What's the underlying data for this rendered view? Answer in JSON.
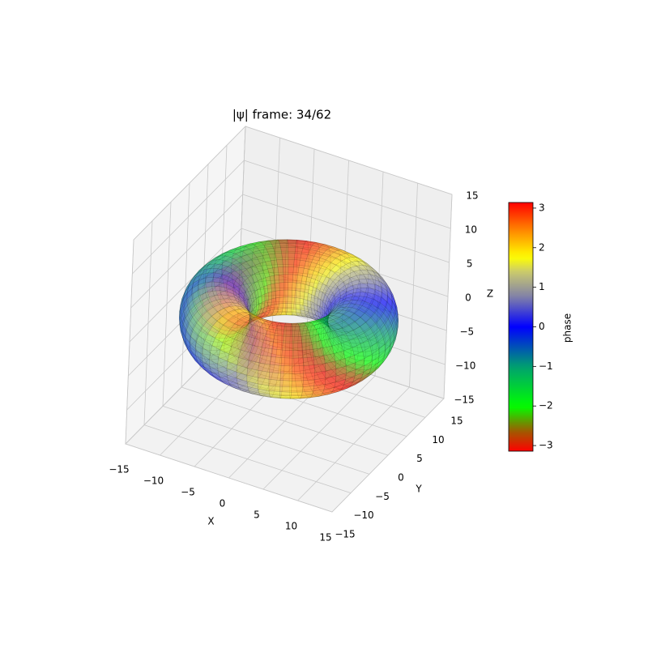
{
  "chart_data": {
    "type": "surface3d",
    "title": "|ψ| frame: 34/62",
    "xlabel": "X",
    "ylabel": "Y",
    "zlabel": "Z",
    "xlim": [
      -15,
      15
    ],
    "ylim": [
      -15,
      15
    ],
    "zlim": [
      -15,
      15
    ],
    "xticks": [
      {
        "value": -15,
        "label": "−15"
      },
      {
        "value": -10,
        "label": "−10"
      },
      {
        "value": -5,
        "label": "−5"
      },
      0,
      5,
      10,
      15
    ],
    "yticks": [
      {
        "value": -15,
        "label": "−15"
      },
      {
        "value": -10,
        "label": "−10"
      },
      {
        "value": -5,
        "label": "−5"
      },
      0,
      5,
      10,
      15
    ],
    "zticks": [
      {
        "value": -15,
        "label": "−15"
      },
      {
        "value": -10,
        "label": "−10"
      },
      {
        "value": -5,
        "label": "−5"
      },
      0,
      5,
      10,
      15
    ],
    "colorbar": {
      "label": "phase",
      "lim": [
        -3.14159,
        3.14159
      ],
      "ticks": [
        {
          "value": -3,
          "label": "−3"
        },
        {
          "value": -2,
          "label": "−2"
        },
        {
          "value": -1,
          "label": "−1"
        },
        0,
        1,
        2,
        3
      ]
    }
  }
}
